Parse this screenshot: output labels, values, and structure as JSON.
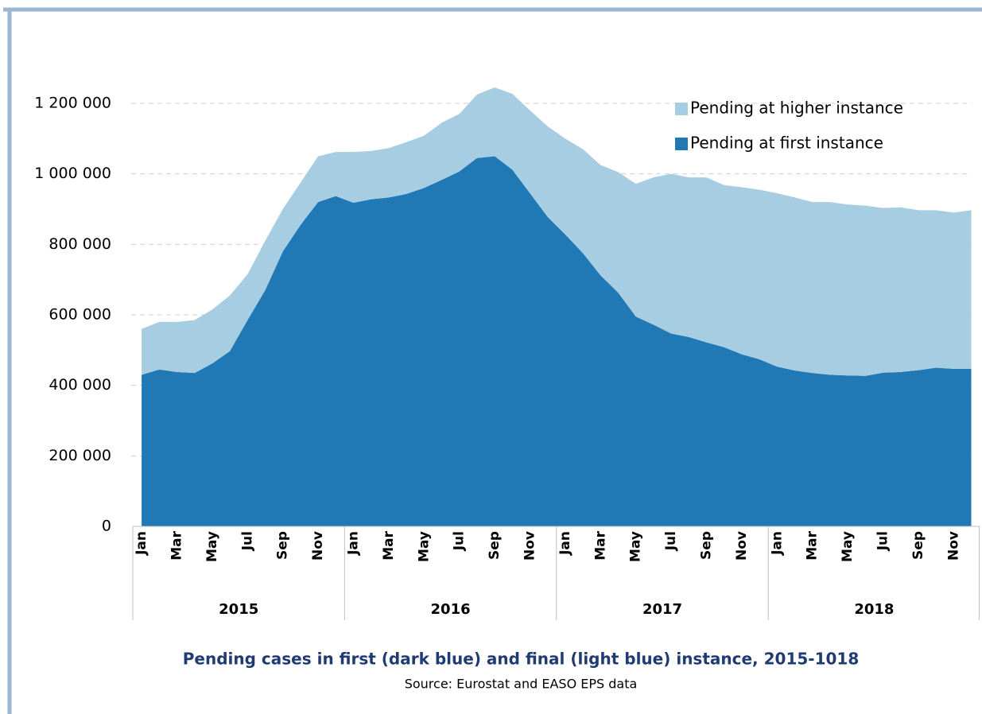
{
  "chart_data": {
    "type": "stacked_area",
    "title": "Pending cases in first (dark blue) and final (light blue) instance, 2015-1018",
    "subtitle": "Source: Eurostat and EASO EPS data",
    "categories": [
      "Jan",
      null,
      "Mar",
      null,
      "May",
      null,
      "Jul",
      null,
      "Sep",
      null,
      "Nov",
      null,
      "Jan",
      null,
      "Mar",
      null,
      "May",
      null,
      "Jul",
      null,
      "Sep",
      null,
      "Nov",
      null,
      "Jan",
      null,
      "Mar",
      null,
      "May",
      null,
      "Jul",
      null,
      "Sep",
      null,
      "Nov",
      null,
      "Jan",
      null,
      "Mar",
      null,
      "May",
      null,
      "Jul",
      null,
      "Sep",
      null,
      "Nov",
      null
    ],
    "year_groups": [
      "2015",
      "2016",
      "2017",
      "2018"
    ],
    "series": [
      {
        "name": "Pending at first instance",
        "color": "#2079b4",
        "values": [
          430000,
          445000,
          438000,
          435000,
          462000,
          497000,
          585000,
          670000,
          780000,
          855000,
          920000,
          937000,
          918000,
          928000,
          933000,
          943000,
          960000,
          983000,
          1007000,
          1045000,
          1050000,
          1012000,
          945000,
          878000,
          828000,
          775000,
          712000,
          663000,
          595000,
          572000,
          547000,
          537000,
          522000,
          508000,
          488000,
          474000,
          453000,
          442000,
          435000,
          430000,
          428000,
          427000,
          436000,
          438000,
          443000,
          450000,
          447000,
          447000
        ]
      },
      {
        "name": "Pending at higher instance",
        "color": "#a6cde2",
        "values": [
          130000,
          135000,
          142000,
          150000,
          153000,
          158000,
          130000,
          140000,
          120000,
          120000,
          130000,
          125000,
          144000,
          137000,
          140000,
          147000,
          148000,
          162000,
          163000,
          180000,
          195000,
          215000,
          235000,
          257000,
          272000,
          295000,
          313000,
          342000,
          377000,
          418000,
          453000,
          453000,
          468000,
          460000,
          474000,
          481000,
          492000,
          491000,
          485000,
          490000,
          485000,
          483000,
          467000,
          467000,
          454000,
          447000,
          443000,
          450000
        ]
      }
    ],
    "ylim": [
      0,
      1200000
    ],
    "yticks": [
      0,
      {
        "value": 200000,
        "label": "200 000"
      },
      {
        "value": 400000,
        "label": "400 000"
      },
      {
        "value": 600000,
        "label": "600 000"
      },
      {
        "value": 800000,
        "label": "800 000"
      },
      {
        "value": 1000000,
        "label": "1 000 000"
      },
      {
        "value": 1200000,
        "label": "1 200 000"
      }
    ],
    "grid": true,
    "legend": "top-right"
  }
}
